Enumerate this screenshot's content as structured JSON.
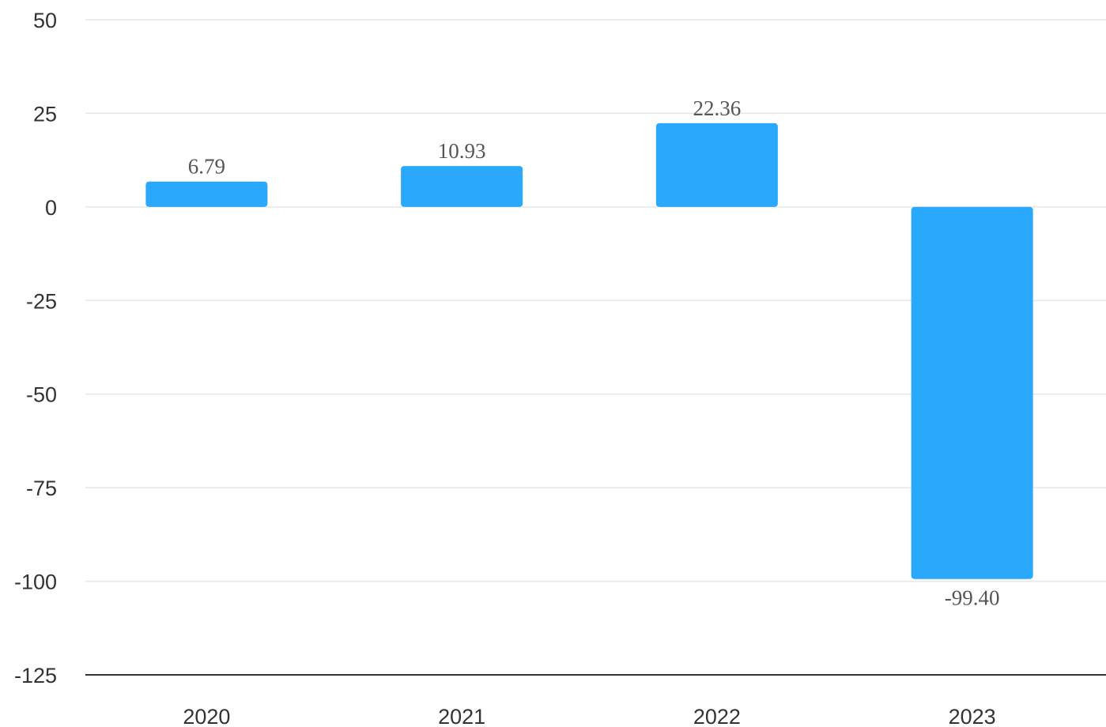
{
  "chart_data": {
    "type": "bar",
    "categories": [
      "2020",
      "2021",
      "2022",
      "2023"
    ],
    "values": [
      6.79,
      10.93,
      22.36,
      -99.4
    ],
    "data_labels": [
      "6.79",
      "10.93",
      "22.36",
      "-99.40"
    ],
    "ylim": [
      -125,
      50
    ],
    "yticks": [
      50,
      25,
      0,
      -25,
      -50,
      -75,
      -100,
      -125
    ],
    "ytick_labels": [
      "50",
      "25",
      "0",
      "-25",
      "-50",
      "-75",
      "-100",
      "-125"
    ],
    "title": "",
    "xlabel": "",
    "ylabel": "",
    "grid": true,
    "legend": "none",
    "colors": {
      "bar": "#2aa9fc",
      "grid": "#e6e6e6",
      "axis": "#333333"
    }
  }
}
